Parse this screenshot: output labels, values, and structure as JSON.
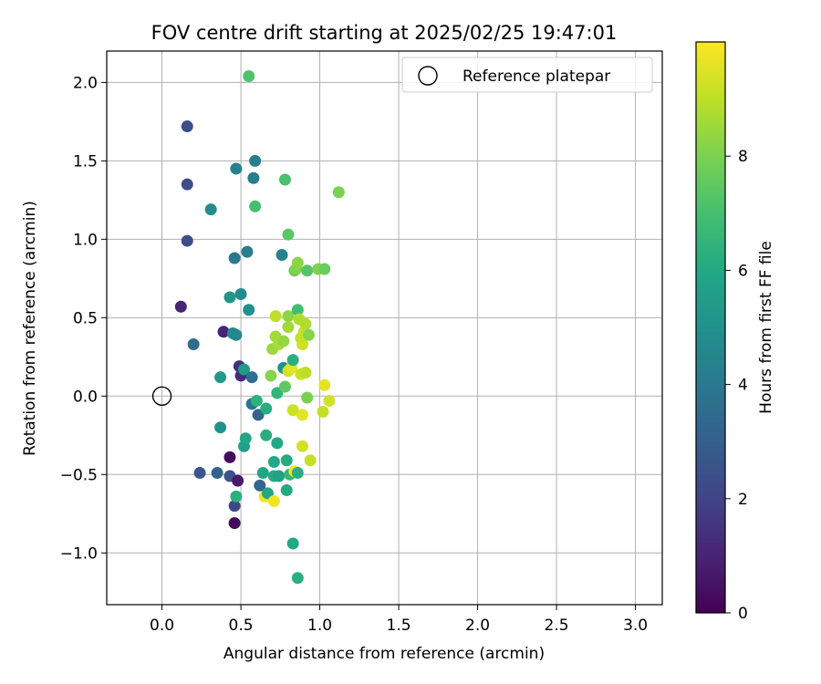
{
  "chart_data": {
    "type": "scatter",
    "title": "FOV centre drift starting at 2025/02/25 19:47:01",
    "xlabel": "Angular distance from reference (arcmin)",
    "ylabel": "Rotation from reference (arcmin)",
    "xlim": [
      -0.35,
      3.17
    ],
    "ylim": [
      -1.33,
      2.2
    ],
    "xticks": [
      0.0,
      0.5,
      1.0,
      1.5,
      2.0,
      2.5,
      3.0
    ],
    "xtick_labels": [
      "0.0",
      "0.5",
      "1.0",
      "1.5",
      "2.0",
      "2.5",
      "3.0"
    ],
    "yticks": [
      -1.0,
      -0.5,
      0.0,
      0.5,
      1.0,
      1.5,
      2.0
    ],
    "ytick_labels": [
      "−1.0",
      "−0.5",
      "0.0",
      "0.5",
      "1.0",
      "1.5",
      "2.0"
    ],
    "grid": true,
    "legend": {
      "placement": "top-right",
      "entries": [
        "Reference platepar"
      ]
    },
    "reference_point": {
      "x": 0.0,
      "y": 0.0,
      "label": "Reference platepar"
    },
    "colorbar": {
      "label": "Hours from first FF file",
      "colormap": "viridis",
      "range": [
        0,
        10
      ],
      "ticks": [
        0,
        2,
        4,
        6,
        8
      ],
      "tick_labels": [
        "0",
        "2",
        "4",
        "6",
        "8"
      ]
    },
    "points": [
      {
        "x": 0.12,
        "y": 0.57,
        "h": 1.0
      },
      {
        "x": 0.16,
        "y": 1.72,
        "h": 2.4
      },
      {
        "x": 0.16,
        "y": 1.35,
        "h": 2.4
      },
      {
        "x": 0.16,
        "y": 0.99,
        "h": 2.4
      },
      {
        "x": 0.2,
        "y": 0.33,
        "h": 3.5
      },
      {
        "x": 0.24,
        "y": -0.49,
        "h": 2.7
      },
      {
        "x": 0.31,
        "y": 1.19,
        "h": 4.8
      },
      {
        "x": 0.35,
        "y": -0.49,
        "h": 3.1
      },
      {
        "x": 0.37,
        "y": 0.12,
        "h": 5.3
      },
      {
        "x": 0.37,
        "y": -0.2,
        "h": 5.0
      },
      {
        "x": 0.39,
        "y": 0.41,
        "h": 1.0
      },
      {
        "x": 0.43,
        "y": 0.63,
        "h": 5.2
      },
      {
        "x": 0.43,
        "y": -0.39,
        "h": 0.3
      },
      {
        "x": 0.43,
        "y": -0.51,
        "h": 2.6
      },
      {
        "x": 0.45,
        "y": 0.4,
        "h": 4.8
      },
      {
        "x": 0.46,
        "y": -0.81,
        "h": 0.2
      },
      {
        "x": 0.46,
        "y": -0.7,
        "h": 2.1
      },
      {
        "x": 0.46,
        "y": 0.88,
        "h": 4.0
      },
      {
        "x": 0.47,
        "y": 0.39,
        "h": 4.6
      },
      {
        "x": 0.47,
        "y": 1.45,
        "h": 4.3
      },
      {
        "x": 0.47,
        "y": -0.64,
        "h": 6.3
      },
      {
        "x": 0.48,
        "y": -0.54,
        "h": 0.7
      },
      {
        "x": 0.49,
        "y": 0.19,
        "h": 1.4
      },
      {
        "x": 0.5,
        "y": 0.13,
        "h": 1.2
      },
      {
        "x": 0.5,
        "y": 0.65,
        "h": 4.7
      },
      {
        "x": 0.52,
        "y": 0.17,
        "h": 5.4
      },
      {
        "x": 0.52,
        "y": -0.32,
        "h": 5.6
      },
      {
        "x": 0.53,
        "y": -0.27,
        "h": 5.9
      },
      {
        "x": 0.54,
        "y": 0.92,
        "h": 4.2
      },
      {
        "x": 0.55,
        "y": 2.04,
        "h": 7.2
      },
      {
        "x": 0.55,
        "y": 0.55,
        "h": 5.0
      },
      {
        "x": 0.57,
        "y": 0.12,
        "h": 3.6
      },
      {
        "x": 0.57,
        "y": -0.05,
        "h": 3.9
      },
      {
        "x": 0.58,
        "y": 1.39,
        "h": 4.2
      },
      {
        "x": 0.59,
        "y": 1.5,
        "h": 4.2
      },
      {
        "x": 0.59,
        "y": 1.21,
        "h": 7.0
      },
      {
        "x": 0.6,
        "y": -0.03,
        "h": 6.4
      },
      {
        "x": 0.61,
        "y": -0.12,
        "h": 3.3
      },
      {
        "x": 0.62,
        "y": -0.57,
        "h": 3.3
      },
      {
        "x": 0.64,
        "y": -0.49,
        "h": 5.9
      },
      {
        "x": 0.65,
        "y": -0.64,
        "h": 9.8
      },
      {
        "x": 0.66,
        "y": -0.25,
        "h": 6.2
      },
      {
        "x": 0.66,
        "y": -0.08,
        "h": 6.2
      },
      {
        "x": 0.67,
        "y": -0.62,
        "h": 5.9
      },
      {
        "x": 0.69,
        "y": 0.13,
        "h": 8.2
      },
      {
        "x": 0.7,
        "y": 0.3,
        "h": 8.5
      },
      {
        "x": 0.71,
        "y": -0.67,
        "h": 9.8
      },
      {
        "x": 0.71,
        "y": -0.51,
        "h": 6.1
      },
      {
        "x": 0.71,
        "y": -0.42,
        "h": 6.0
      },
      {
        "x": 0.72,
        "y": 0.38,
        "h": 8.6
      },
      {
        "x": 0.72,
        "y": 0.51,
        "h": 9.0
      },
      {
        "x": 0.73,
        "y": -0.3,
        "h": 6.0
      },
      {
        "x": 0.73,
        "y": 0.02,
        "h": 6.5
      },
      {
        "x": 0.74,
        "y": 0.33,
        "h": 8.7
      },
      {
        "x": 0.74,
        "y": -0.51,
        "h": 5.7
      },
      {
        "x": 0.76,
        "y": 0.9,
        "h": 4.4
      },
      {
        "x": 0.77,
        "y": 0.18,
        "h": 5.0
      },
      {
        "x": 0.77,
        "y": 0.35,
        "h": 8.4
      },
      {
        "x": 0.78,
        "y": 1.38,
        "h": 7.1
      },
      {
        "x": 0.78,
        "y": 0.06,
        "h": 7.5
      },
      {
        "x": 0.79,
        "y": -0.41,
        "h": 6.1
      },
      {
        "x": 0.79,
        "y": -0.6,
        "h": 6.1
      },
      {
        "x": 0.8,
        "y": 0.51,
        "h": 8.3
      },
      {
        "x": 0.8,
        "y": 0.44,
        "h": 8.6
      },
      {
        "x": 0.8,
        "y": 1.03,
        "h": 7.4
      },
      {
        "x": 0.8,
        "y": 0.16,
        "h": 9.3
      },
      {
        "x": 0.81,
        "y": -0.5,
        "h": 6.6
      },
      {
        "x": 0.82,
        "y": 0.18,
        "h": 9.6
      },
      {
        "x": 0.83,
        "y": -0.94,
        "h": 6.0
      },
      {
        "x": 0.83,
        "y": 0.23,
        "h": 6.3
      },
      {
        "x": 0.83,
        "y": -0.09,
        "h": 9.2
      },
      {
        "x": 0.84,
        "y": -0.48,
        "h": 9.8
      },
      {
        "x": 0.84,
        "y": 0.8,
        "h": 7.7
      },
      {
        "x": 0.85,
        "y": 0.81,
        "h": 8.1
      },
      {
        "x": 0.86,
        "y": 0.85,
        "h": 8.3
      },
      {
        "x": 0.86,
        "y": -0.49,
        "h": 6.3
      },
      {
        "x": 0.86,
        "y": 0.55,
        "h": 6.9
      },
      {
        "x": 0.86,
        "y": -1.16,
        "h": 6.3
      },
      {
        "x": 0.87,
        "y": 0.49,
        "h": 8.8
      },
      {
        "x": 0.88,
        "y": 0.37,
        "h": 9.1
      },
      {
        "x": 0.88,
        "y": 0.14,
        "h": 9.2
      },
      {
        "x": 0.89,
        "y": -0.32,
        "h": 9.3
      },
      {
        "x": 0.89,
        "y": 0.33,
        "h": 9.2
      },
      {
        "x": 0.89,
        "y": -0.12,
        "h": 9.6
      },
      {
        "x": 0.9,
        "y": 0.41,
        "h": 9.2
      },
      {
        "x": 0.91,
        "y": 0.15,
        "h": 9.0
      },
      {
        "x": 0.91,
        "y": 0.46,
        "h": 8.8
      },
      {
        "x": 0.92,
        "y": 0.8,
        "h": 7.3
      },
      {
        "x": 0.92,
        "y": -0.01,
        "h": 8.0
      },
      {
        "x": 0.93,
        "y": 0.39,
        "h": 8.2
      },
      {
        "x": 0.94,
        "y": -0.41,
        "h": 9.1
      },
      {
        "x": 0.99,
        "y": 0.81,
        "h": 8.1
      },
      {
        "x": 1.02,
        "y": -0.1,
        "h": 9.1
      },
      {
        "x": 1.03,
        "y": 0.81,
        "h": 7.7
      },
      {
        "x": 1.03,
        "y": 0.07,
        "h": 9.6
      },
      {
        "x": 1.06,
        "y": -0.03,
        "h": 9.3
      },
      {
        "x": 1.12,
        "y": 1.3,
        "h": 8.0
      }
    ]
  }
}
